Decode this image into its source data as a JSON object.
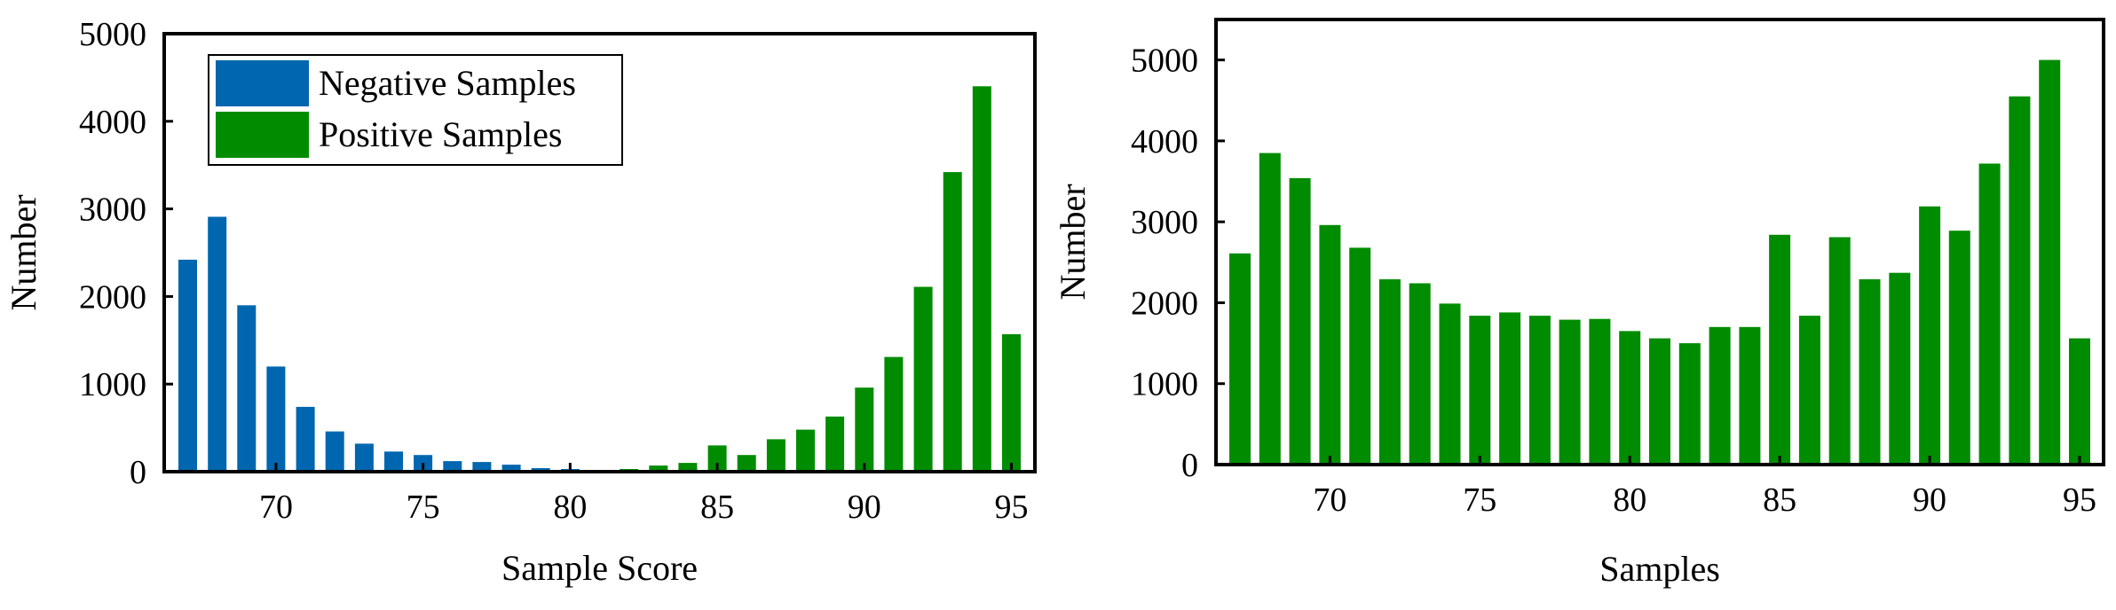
{
  "colors": {
    "negative": "#0066B0",
    "positive": "#008C00",
    "axis": "#000000"
  },
  "chart_data": [
    {
      "type": "bar",
      "xlabel": "Sample Score",
      "ylabel": "Number",
      "xlim": [
        66.2,
        95.8
      ],
      "ylim": [
        0,
        5000
      ],
      "xticks": [
        70,
        75,
        80,
        85,
        90,
        95
      ],
      "yticks": [
        0,
        1000,
        2000,
        3000,
        4000,
        5000
      ],
      "grid": false,
      "legend": {
        "placement": "top-left",
        "entries": [
          {
            "label": "Negative Samples",
            "series": "negative"
          },
          {
            "label": "Positive Samples",
            "series": "positive"
          }
        ]
      },
      "series": [
        {
          "name": "Negative Samples",
          "key": "negative",
          "x": [
            67,
            68,
            69,
            70,
            71,
            72,
            73,
            74,
            75,
            76,
            77,
            78,
            79,
            80,
            81,
            82
          ],
          "values": [
            2420,
            2910,
            1900,
            1200,
            740,
            460,
            320,
            230,
            190,
            120,
            110,
            80,
            40,
            30,
            20,
            10
          ]
        },
        {
          "name": "Positive Samples",
          "key": "positive",
          "x": [
            82,
            83,
            84,
            85,
            86,
            87,
            88,
            89,
            90,
            91,
            92,
            93,
            94,
            95
          ],
          "values": [
            30,
            70,
            100,
            300,
            190,
            370,
            480,
            630,
            960,
            1310,
            2110,
            3420,
            4400,
            1570
          ]
        }
      ]
    },
    {
      "type": "bar",
      "xlabel": "Samples",
      "ylabel": "Number",
      "xlim": [
        66.2,
        95.8
      ],
      "ylim": [
        0,
        5500
      ],
      "xticks": [
        70,
        75,
        80,
        85,
        90,
        95
      ],
      "yticks": [
        0,
        1000,
        2000,
        3000,
        4000,
        5000
      ],
      "grid": false,
      "series": [
        {
          "key": "positive",
          "x": [
            67,
            68,
            69,
            70,
            71,
            72,
            73,
            74,
            75,
            76,
            77,
            78,
            79,
            80,
            81,
            82,
            83,
            84,
            85,
            86,
            87,
            88,
            89,
            90,
            91,
            92,
            93,
            94,
            95
          ],
          "values": [
            2610,
            3850,
            3540,
            2960,
            2680,
            2290,
            2240,
            1990,
            1840,
            1880,
            1840,
            1790,
            1800,
            1650,
            1560,
            1500,
            1700,
            1700,
            2840,
            1840,
            2810,
            2290,
            2370,
            3190,
            2890,
            3720,
            4550,
            5000,
            1560
          ]
        }
      ]
    }
  ]
}
